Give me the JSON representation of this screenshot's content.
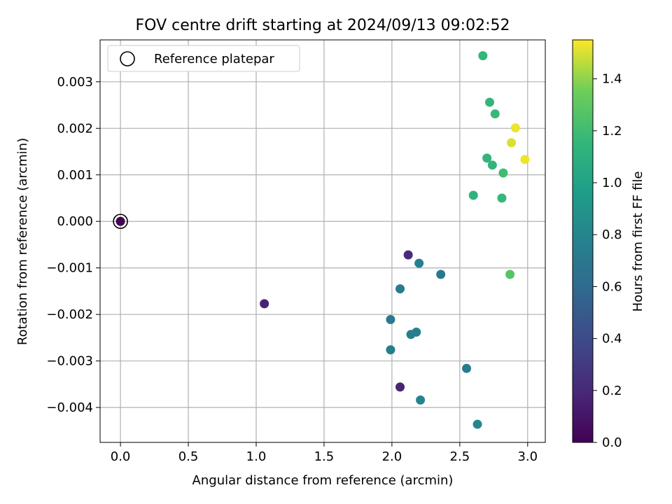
{
  "chart_data": {
    "type": "scatter",
    "title": "FOV centre drift starting at 2024/09/13 09:02:52",
    "xlabel": "Angular distance from reference (arcmin)",
    "ylabel": "Rotation from reference (arcmin)",
    "xlim": [
      -0.15,
      3.13
    ],
    "ylim": [
      -0.00475,
      0.0039
    ],
    "xticks": [
      0.0,
      0.5,
      1.0,
      1.5,
      2.0,
      2.5,
      3.0
    ],
    "xtick_labels": [
      "0.0",
      "0.5",
      "1.0",
      "1.5",
      "2.0",
      "2.5",
      "3.0"
    ],
    "yticks": [
      0.003,
      0.002,
      0.001,
      0.0,
      -0.001,
      -0.002,
      -0.003,
      -0.004
    ],
    "ytick_labels": [
      "0.003",
      "0.002",
      "0.001",
      "0.000",
      "−0.001",
      "−0.002",
      "−0.003",
      "−0.004"
    ],
    "grid": true,
    "legend": {
      "placement": "top-left",
      "entries": [
        "Reference platepar"
      ]
    },
    "colormap": "viridis",
    "colorbar": {
      "label": "Hours from first FF file",
      "range": [
        0.0,
        1.55
      ],
      "ticks": [
        0.0,
        0.2,
        0.4,
        0.6,
        0.8,
        1.0,
        1.2,
        1.4
      ],
      "tick_labels": [
        "0.0",
        "0.2",
        "0.4",
        "0.6",
        "0.8",
        "1.0",
        "1.2",
        "1.4"
      ]
    },
    "reference_point": {
      "x": 0.0,
      "y": 0.0
    },
    "points": [
      {
        "x": 0.0,
        "y": 0.0,
        "hours": 0.0
      },
      {
        "x": 1.06,
        "y": -0.00177,
        "hours": 0.17
      },
      {
        "x": 2.06,
        "y": -0.00356,
        "hours": 0.18
      },
      {
        "x": 2.12,
        "y": -0.00072,
        "hours": 0.22
      },
      {
        "x": 2.06,
        "y": -0.00145,
        "hours": 0.72
      },
      {
        "x": 2.2,
        "y": -0.0009,
        "hours": 0.75
      },
      {
        "x": 1.99,
        "y": -0.00211,
        "hours": 0.72
      },
      {
        "x": 2.14,
        "y": -0.00243,
        "hours": 0.75
      },
      {
        "x": 2.18,
        "y": -0.00238,
        "hours": 0.75
      },
      {
        "x": 1.99,
        "y": -0.00276,
        "hours": 0.75
      },
      {
        "x": 2.36,
        "y": -0.00114,
        "hours": 0.7
      },
      {
        "x": 2.21,
        "y": -0.00384,
        "hours": 0.78
      },
      {
        "x": 2.55,
        "y": -0.00316,
        "hours": 0.72
      },
      {
        "x": 2.63,
        "y": -0.00436,
        "hours": 0.8
      },
      {
        "x": 2.6,
        "y": 0.00056,
        "hours": 1.12
      },
      {
        "x": 2.81,
        "y": 0.0005,
        "hours": 1.17
      },
      {
        "x": 2.7,
        "y": 0.00136,
        "hours": 1.14
      },
      {
        "x": 2.74,
        "y": 0.00121,
        "hours": 1.14
      },
      {
        "x": 2.82,
        "y": 0.00104,
        "hours": 1.2
      },
      {
        "x": 2.87,
        "y": -0.00114,
        "hours": 1.27
      },
      {
        "x": 2.67,
        "y": 0.00356,
        "hours": 1.15
      },
      {
        "x": 2.72,
        "y": 0.00256,
        "hours": 1.15
      },
      {
        "x": 2.76,
        "y": 0.00231,
        "hours": 1.17
      },
      {
        "x": 2.91,
        "y": 0.00201,
        "hours": 1.53
      },
      {
        "x": 2.88,
        "y": 0.00169,
        "hours": 1.5
      },
      {
        "x": 2.98,
        "y": 0.00133,
        "hours": 1.53
      }
    ]
  }
}
